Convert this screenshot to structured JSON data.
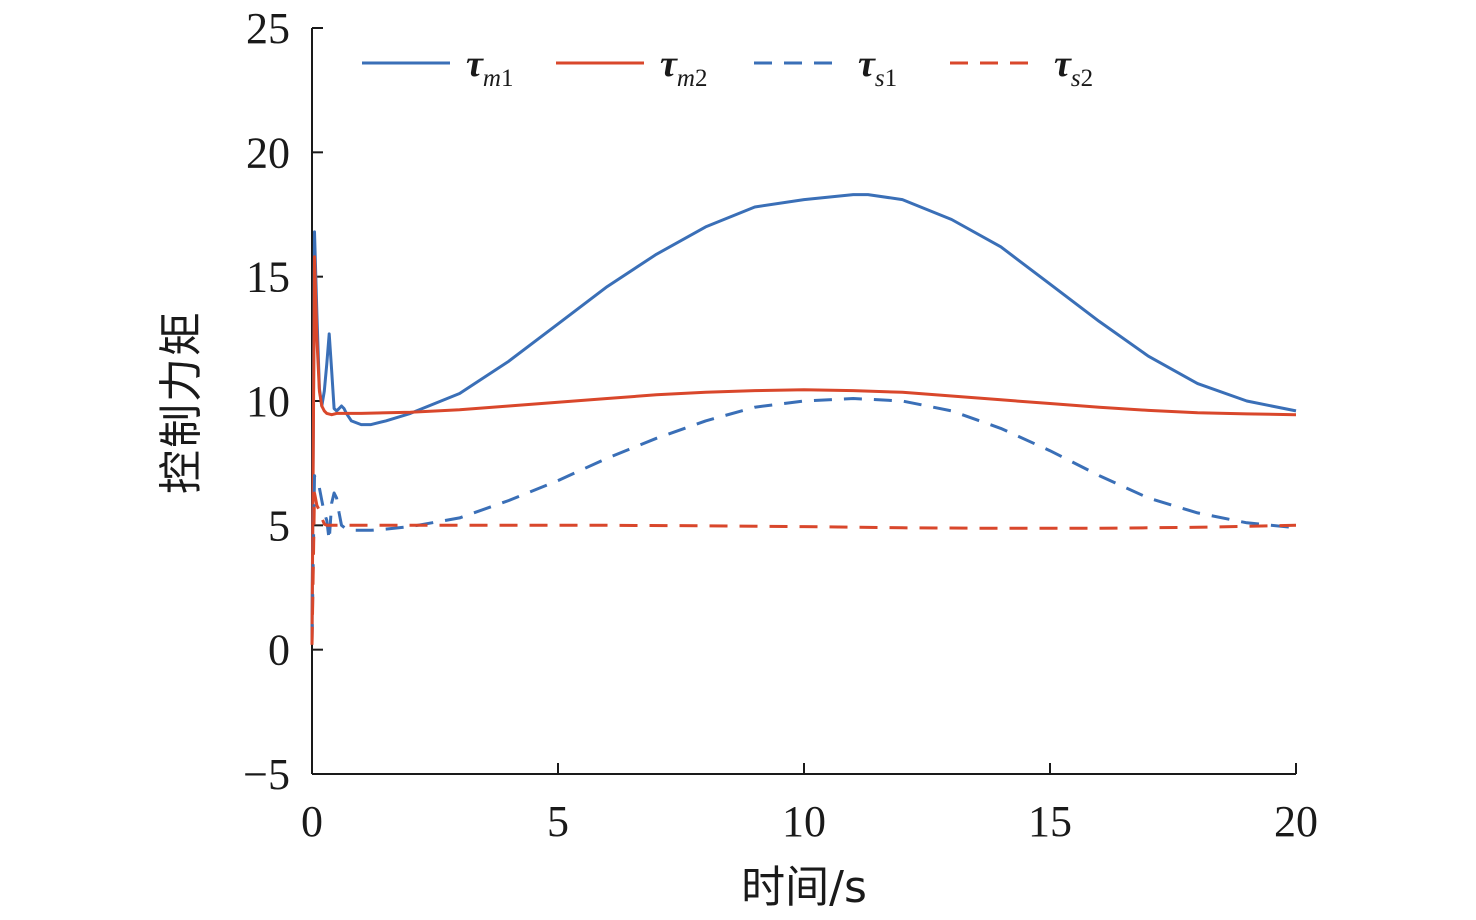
{
  "chart_data": {
    "type": "line",
    "title": "",
    "xlabel": "时间/s",
    "ylabel": "控制力矩",
    "xlim": [
      0,
      20
    ],
    "ylim": [
      -5,
      25
    ],
    "xticks": [
      0,
      5,
      10,
      15,
      20
    ],
    "yticks": [
      -5,
      0,
      5,
      10,
      15,
      20,
      25
    ],
    "ytick_labels": [
      "−5",
      "0",
      "5",
      "10",
      "15",
      "20",
      "25"
    ],
    "grid": false,
    "legend_position": "top",
    "series": [
      {
        "name": "τm1",
        "name_symbol": "τ",
        "name_sub": "m1",
        "color": "#3a6fb7",
        "style": "solid",
        "x": [
          0,
          0.05,
          0.1,
          0.15,
          0.2,
          0.25,
          0.3,
          0.35,
          0.4,
          0.45,
          0.5,
          0.55,
          0.6,
          0.65,
          0.7,
          0.8,
          1.0,
          1.2,
          1.5,
          2,
          3,
          4,
          5,
          6,
          7,
          8,
          9,
          10,
          11,
          11.3,
          12,
          13,
          14,
          15,
          16,
          17,
          18,
          19,
          20
        ],
        "y": [
          0.5,
          16.8,
          13.5,
          10.5,
          9.8,
          10.4,
          11.5,
          12.7,
          11.2,
          9.7,
          9.6,
          9.7,
          9.8,
          9.7,
          9.5,
          9.2,
          9.05,
          9.05,
          9.2,
          9.5,
          10.3,
          11.6,
          13.1,
          14.6,
          15.9,
          17.0,
          17.8,
          18.1,
          18.3,
          18.3,
          18.1,
          17.3,
          16.2,
          14.7,
          13.2,
          11.8,
          10.7,
          10.0,
          9.6
        ]
      },
      {
        "name": "τm2",
        "name_symbol": "τ",
        "name_sub": "m2",
        "color": "#d9472b",
        "style": "solid",
        "x": [
          0,
          0.05,
          0.1,
          0.15,
          0.2,
          0.25,
          0.3,
          0.4,
          0.5,
          1,
          2,
          3,
          4,
          5,
          6,
          7,
          8,
          9,
          10,
          11,
          12,
          13,
          14,
          15,
          16,
          17,
          18,
          19,
          20
        ],
        "y": [
          0.2,
          15.8,
          12.5,
          10.4,
          9.8,
          9.6,
          9.5,
          9.45,
          9.5,
          9.5,
          9.55,
          9.65,
          9.8,
          9.95,
          10.1,
          10.25,
          10.35,
          10.42,
          10.45,
          10.42,
          10.35,
          10.2,
          10.05,
          9.9,
          9.75,
          9.62,
          9.53,
          9.48,
          9.45
        ]
      },
      {
        "name": "τs1",
        "name_symbol": "τ",
        "name_sub": "s1",
        "color": "#3a6fb7",
        "style": "dashed",
        "x": [
          0,
          0.05,
          0.1,
          0.15,
          0.2,
          0.25,
          0.3,
          0.35,
          0.4,
          0.45,
          0.5,
          0.55,
          0.6,
          0.7,
          0.8,
          1.0,
          1.2,
          1.5,
          2,
          3,
          4,
          5,
          6,
          7,
          8,
          9,
          10,
          11,
          12,
          13,
          14,
          15,
          16,
          17,
          18,
          19,
          20
        ],
        "y": [
          0.3,
          7.0,
          6.7,
          6.5,
          6.0,
          5.5,
          5.2,
          4.4,
          5.9,
          6.3,
          6.1,
          5.5,
          5.0,
          4.85,
          4.8,
          4.8,
          4.8,
          4.85,
          4.95,
          5.3,
          6.0,
          6.8,
          7.7,
          8.5,
          9.2,
          9.75,
          10.0,
          10.1,
          10.0,
          9.6,
          8.9,
          8.0,
          7.0,
          6.1,
          5.5,
          5.1,
          4.9
        ]
      },
      {
        "name": "τs2",
        "name_symbol": "τ",
        "name_sub": "s2",
        "color": "#d9472b",
        "style": "dashed",
        "x": [
          0,
          0.05,
          0.1,
          0.15,
          0.2,
          0.25,
          0.3,
          0.4,
          0.5,
          1,
          2,
          4,
          6,
          8,
          10,
          12,
          14,
          16,
          18,
          20
        ],
        "y": [
          0.2,
          6.3,
          5.8,
          5.6,
          5.3,
          5.05,
          5.0,
          5.0,
          5.0,
          5.0,
          5.0,
          5.0,
          5.0,
          4.98,
          4.95,
          4.9,
          4.88,
          4.88,
          4.92,
          5.0
        ]
      }
    ]
  }
}
